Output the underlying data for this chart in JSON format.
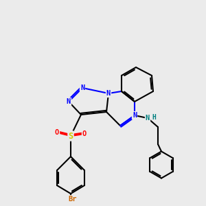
{
  "background_color": "#ebebeb",
  "atom_colors": {
    "N": "#0000ff",
    "O": "#ff0000",
    "S": "#cccc00",
    "Br": "#cc6600",
    "NH": "#008080",
    "C": "#000000"
  },
  "line_color": "#000000",
  "lw": 1.5,
  "figsize": [
    3.0,
    3.0
  ],
  "dpi": 100
}
